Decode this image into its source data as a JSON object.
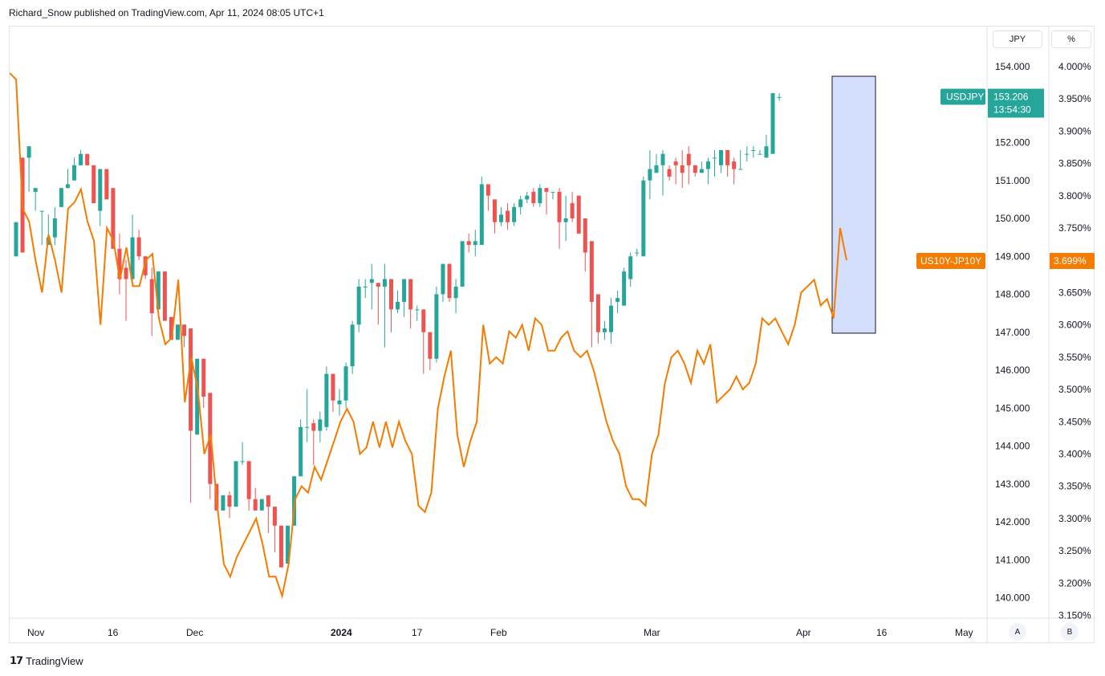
{
  "header": {
    "attribution": "Richard_Snow published on TradingView.com, Apr 11, 2024 08:05 UTC+1"
  },
  "footer": {
    "brand": "TradingView"
  },
  "scales": {
    "left_unit": "JPY",
    "right_unit": "%",
    "auto_label": "A",
    "log_label": "B"
  },
  "colors": {
    "up": "#26a69a",
    "down": "#ef5350",
    "spread": "#f57c00",
    "highlight": "#cfdcfb",
    "highlight_border": "#131722"
  },
  "chart_data": {
    "type": "line",
    "title": "",
    "price_axis": {
      "unit": "JPY",
      "range": [
        140.0,
        154.0
      ],
      "ticks": [
        "154.000",
        "153.000",
        "152.000",
        "151.000",
        "150.000",
        "149.000",
        "148.000",
        "147.000",
        "146.000",
        "145.000",
        "144.000",
        "143.000",
        "142.000",
        "141.000",
        "140.000"
      ]
    },
    "yield_axis": {
      "unit": "%",
      "range": [
        3.15,
        4.0
      ],
      "ticks": [
        "4.000%",
        "3.950%",
        "3.900%",
        "3.850%",
        "3.800%",
        "3.750%",
        "3.700%",
        "3.650%",
        "3.600%",
        "3.550%",
        "3.500%",
        "3.450%",
        "3.400%",
        "3.350%",
        "3.300%",
        "3.250%",
        "3.200%",
        "3.150%"
      ]
    },
    "time_axis": {
      "labels": [
        "Nov",
        "16",
        "Dec",
        "2024",
        "17",
        "Feb",
        "Mar",
        "Apr",
        "16",
        "May"
      ]
    },
    "series": [
      {
        "name": "USDJPY",
        "kind": "candlestick",
        "last": "153.206",
        "countdown": "13:54:30",
        "ohlc": [
          [
            149.0,
            149.9,
            148.8,
            150.2
          ],
          [
            151.6,
            149.1,
            150.1,
            151.7
          ],
          [
            151.6,
            151.9,
            150.5,
            150.7
          ],
          [
            150.7,
            150.8,
            149.9,
            150.2
          ],
          [
            150.2,
            150.2,
            149.5,
            149.3
          ],
          [
            149.3,
            149.5,
            150.1,
            149.5
          ],
          [
            149.5,
            150.0,
            150.3,
            149.3
          ],
          [
            150.3,
            150.8,
            150.6,
            150.3
          ],
          [
            150.8,
            150.9,
            151.3,
            151.0
          ],
          [
            151.0,
            151.4,
            151.6,
            151.3
          ],
          [
            151.4,
            151.7,
            151.8,
            151.6
          ],
          [
            151.7,
            151.4,
            151.6,
            151.5
          ],
          [
            151.4,
            150.4,
            150.2,
            150.4
          ],
          [
            150.2,
            151.3,
            150.9,
            149.8
          ],
          [
            151.3,
            150.5,
            150.6,
            150.6
          ],
          [
            150.8,
            149.2,
            149.1,
            149.8
          ],
          [
            149.2,
            148.4,
            149.6,
            148.0
          ],
          [
            148.7,
            148.4,
            148.9,
            147.3
          ],
          [
            148.4,
            149.5,
            150.1,
            148.2
          ],
          [
            149.5,
            149.0,
            149.7,
            148.9
          ],
          [
            149.0,
            148.5,
            148.9,
            148.4
          ],
          [
            148.4,
            147.5,
            148.7,
            146.9
          ],
          [
            147.6,
            148.6,
            148.5,
            147.9
          ],
          [
            148.6,
            147.3,
            147.6,
            147.7
          ],
          [
            147.4,
            146.8,
            147.1,
            146.9
          ],
          [
            146.8,
            147.2,
            147.1,
            146.8
          ],
          [
            147.2,
            146.9,
            146.9,
            146.6
          ],
          [
            147.1,
            144.4,
            145.4,
            142.5
          ],
          [
            144.3,
            146.3,
            146.0,
            145.4
          ],
          [
            146.3,
            145.3,
            145.8,
            145.0
          ],
          [
            145.4,
            143.0,
            143.4,
            142.6
          ],
          [
            143.0,
            142.3,
            142.5,
            142.5
          ],
          [
            142.3,
            142.7,
            142.7,
            142.5
          ],
          [
            142.7,
            142.4,
            142.8,
            142.1
          ],
          [
            142.4,
            143.6,
            143.3,
            142.4
          ],
          [
            143.6,
            143.6,
            144.1,
            143.5
          ],
          [
            143.6,
            142.6,
            142.3,
            142.3
          ],
          [
            142.6,
            142.3,
            142.9,
            142.4
          ],
          [
            142.3,
            142.6,
            142.4,
            142.4
          ],
          [
            142.7,
            142.4,
            142.6,
            141.7
          ],
          [
            142.4,
            141.9,
            142.1,
            141.2
          ],
          [
            141.9,
            140.8,
            141.5,
            141.0
          ],
          [
            140.9,
            141.9,
            141.9,
            140.9
          ],
          [
            141.9,
            143.2,
            143.0,
            141.9
          ],
          [
            143.2,
            144.5,
            144.7,
            143.2
          ],
          [
            144.5,
            144.5,
            145.5,
            144.1
          ],
          [
            144.6,
            144.4,
            144.7,
            143.5
          ],
          [
            144.4,
            144.7,
            144.9,
            144.1
          ],
          [
            144.5,
            145.9,
            146.1,
            144.4
          ],
          [
            145.9,
            145.2,
            145.4,
            144.9
          ],
          [
            145.1,
            145.2,
            145.5,
            144.8
          ],
          [
            145.2,
            146.1,
            146.2,
            145.0
          ],
          [
            146.1,
            147.2,
            147.3,
            145.9
          ],
          [
            147.2,
            148.2,
            148.4,
            147.0
          ],
          [
            148.2,
            148.2,
            148.4,
            147.9
          ],
          [
            148.3,
            148.4,
            148.8,
            147.6
          ],
          [
            148.3,
            148.2,
            148.2,
            147.2
          ],
          [
            148.2,
            148.4,
            148.8,
            146.6
          ],
          [
            148.4,
            147.6,
            148.2,
            147.0
          ],
          [
            147.6,
            147.8,
            148.1,
            147.5
          ],
          [
            147.8,
            148.4,
            148.4,
            147.4
          ],
          [
            148.4,
            147.6,
            147.8,
            147.1
          ],
          [
            147.6,
            147.6,
            147.7,
            147.3
          ],
          [
            147.6,
            147.0,
            147.6,
            145.9
          ],
          [
            147.0,
            146.3,
            146.9,
            146.0
          ],
          [
            146.3,
            148.0,
            148.2,
            146.2
          ],
          [
            148.0,
            148.8,
            148.6,
            147.8
          ],
          [
            148.8,
            147.9,
            148.5,
            147.8
          ],
          [
            147.9,
            148.2,
            148.4,
            147.5
          ],
          [
            148.2,
            149.4,
            149.3,
            148.2
          ],
          [
            149.4,
            149.3,
            149.6,
            149.1
          ],
          [
            149.3,
            149.4,
            149.7,
            149.0
          ],
          [
            149.3,
            150.9,
            151.1,
            149.3
          ],
          [
            150.9,
            150.6,
            150.8,
            150.2
          ],
          [
            150.5,
            149.9,
            150.5,
            149.6
          ],
          [
            149.9,
            150.1,
            150.3,
            149.8
          ],
          [
            150.2,
            149.9,
            150.4,
            149.7
          ],
          [
            149.9,
            150.3,
            150.4,
            149.8
          ],
          [
            150.3,
            150.5,
            150.6,
            150.1
          ],
          [
            150.5,
            150.6,
            150.7,
            150.4
          ],
          [
            150.7,
            150.4,
            150.8,
            150.3
          ],
          [
            150.4,
            150.8,
            150.9,
            150.3
          ],
          [
            150.8,
            150.7,
            150.7,
            150.1
          ],
          [
            150.7,
            150.7,
            150.6,
            150.5
          ],
          [
            150.7,
            149.9,
            150.8,
            149.2
          ],
          [
            149.9,
            150.0,
            150.6,
            149.4
          ],
          [
            150.4,
            150.0,
            150.7,
            149.9
          ],
          [
            150.6,
            149.6,
            150.4,
            149.7
          ],
          [
            150.0,
            149.1,
            149.5,
            148.6
          ],
          [
            149.4,
            147.8,
            148.6,
            146.6
          ],
          [
            148.0,
            147.0,
            147.4,
            146.7
          ],
          [
            147.0,
            147.1,
            147.3,
            146.8
          ],
          [
            147.0,
            147.7,
            147.9,
            146.7
          ],
          [
            147.8,
            147.9,
            148.1,
            147.5
          ],
          [
            147.7,
            148.6,
            148.7,
            147.7
          ],
          [
            148.4,
            149.0,
            149.1,
            148.2
          ],
          [
            149.1,
            149.1,
            149.2,
            149.0
          ],
          [
            149.0,
            151.0,
            151.1,
            149.1
          ],
          [
            151.0,
            151.3,
            151.8,
            150.5
          ],
          [
            151.2,
            151.4,
            151.7,
            151.3
          ],
          [
            151.4,
            151.7,
            151.8,
            150.6
          ],
          [
            151.3,
            151.1,
            151.4,
            151.0
          ],
          [
            151.5,
            151.4,
            151.6,
            150.9
          ],
          [
            151.4,
            151.2,
            151.8,
            150.8
          ],
          [
            151.7,
            151.4,
            151.9,
            150.9
          ],
          [
            151.4,
            151.2,
            151.4,
            151.1
          ],
          [
            151.2,
            151.3,
            151.5,
            151.2
          ],
          [
            151.3,
            151.5,
            151.6,
            150.9
          ],
          [
            151.6,
            151.6,
            151.8,
            151.1
          ],
          [
            151.4,
            151.8,
            151.7,
            151.2
          ],
          [
            151.8,
            151.4,
            151.7,
            151.1
          ],
          [
            151.5,
            151.3,
            151.6,
            150.9
          ],
          [
            151.3,
            151.3,
            151.8,
            151.4
          ],
          [
            151.7,
            151.7,
            151.9,
            151.5
          ],
          [
            151.8,
            151.8,
            151.9,
            151.6
          ],
          [
            151.7,
            151.7,
            151.8,
            151.7
          ],
          [
            151.6,
            151.9,
            152.2,
            151.7
          ],
          [
            151.7,
            153.3,
            153.2,
            151.8
          ],
          [
            153.2,
            153.2,
            153.3,
            153.1
          ]
        ],
        "note": ""
      },
      {
        "name": "US10Y-JP10Y",
        "kind": "line",
        "last": "3.699%",
        "values": [
          3.99,
          3.98,
          3.78,
          3.76,
          3.7,
          3.65,
          3.74,
          3.7,
          3.65,
          3.78,
          3.79,
          3.81,
          3.76,
          3.73,
          3.6,
          3.75,
          3.73,
          3.67,
          3.72,
          3.66,
          3.66,
          3.7,
          3.71,
          3.61,
          3.57,
          3.58,
          3.67,
          3.48,
          3.55,
          3.5,
          3.4,
          3.43,
          3.32,
          3.23,
          3.21,
          3.24,
          3.26,
          3.28,
          3.3,
          3.26,
          3.21,
          3.21,
          3.18,
          3.23,
          3.33,
          3.35,
          3.34,
          3.38,
          3.36,
          3.39,
          3.42,
          3.45,
          3.47,
          3.45,
          3.4,
          3.41,
          3.45,
          3.41,
          3.45,
          3.41,
          3.45,
          3.42,
          3.4,
          3.32,
          3.31,
          3.34,
          3.47,
          3.52,
          3.56,
          3.43,
          3.38,
          3.42,
          3.45,
          3.6,
          3.54,
          3.55,
          3.54,
          3.59,
          3.58,
          3.6,
          3.56,
          3.61,
          3.6,
          3.56,
          3.56,
          3.58,
          3.59,
          3.56,
          3.55,
          3.56,
          3.53,
          3.49,
          3.45,
          3.42,
          3.4,
          3.35,
          3.33,
          3.33,
          3.32,
          3.4,
          3.43,
          3.51,
          3.55,
          3.56,
          3.54,
          3.51,
          3.56,
          3.54,
          3.57,
          3.48,
          3.49,
          3.5,
          3.52,
          3.5,
          3.51,
          3.54,
          3.61,
          3.6,
          3.61,
          3.59,
          3.57,
          3.6,
          3.65,
          3.66,
          3.67,
          3.63,
          3.64,
          3.61,
          3.75,
          3.7
        ]
      }
    ],
    "annotations": [
      {
        "kind": "rectangle",
        "label": ""
      }
    ]
  }
}
